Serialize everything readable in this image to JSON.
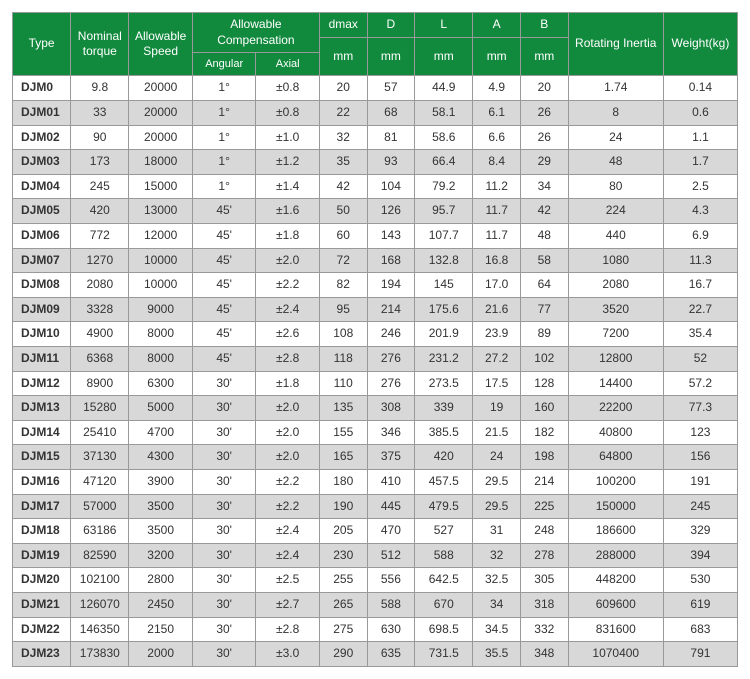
{
  "header": {
    "bg_color": "#128a3e",
    "text_color": "#ffffff",
    "cols": {
      "type": "Type",
      "nominal_torque": "Nominal torque",
      "allowable_speed": "Allowable Speed",
      "allowable_comp": "Allowable Compensation",
      "angular": "Angular",
      "axial": "Axial",
      "dmax": "dmax",
      "dmax_unit": "mm",
      "D": "D",
      "D_unit": "mm",
      "L": "L",
      "L_unit": "mm",
      "A": "A",
      "A_unit": "mm",
      "B": "B",
      "B_unit": "mm",
      "rotating_inertia": "Rotating Inertia",
      "weight": "Weight(kg)"
    }
  },
  "col_widths": {
    "type": 55,
    "torque": 55,
    "speed": 60,
    "angular": 60,
    "axial": 60,
    "dmax": 45,
    "D": 45,
    "L": 55,
    "A": 45,
    "B": 45,
    "inertia": 90,
    "weight": 70
  },
  "zebra": {
    "odd": "#ffffff",
    "even": "#d8d8d8"
  },
  "rows": [
    {
      "type": "DJM0",
      "torque": "9.8",
      "speed": "20000",
      "ang": "1°",
      "ax": "±0.8",
      "dmax": "20",
      "D": "57",
      "L": "44.9",
      "A": "4.9",
      "B": "20",
      "inertia": "1.74",
      "weight": "0.14"
    },
    {
      "type": "DJM01",
      "torque": "33",
      "speed": "20000",
      "ang": "1°",
      "ax": "±0.8",
      "dmax": "22",
      "D": "68",
      "L": "58.1",
      "A": "6.1",
      "B": "26",
      "inertia": "8",
      "weight": "0.6"
    },
    {
      "type": "DJM02",
      "torque": "90",
      "speed": "20000",
      "ang": "1°",
      "ax": "±1.0",
      "dmax": "32",
      "D": "81",
      "L": "58.6",
      "A": "6.6",
      "B": "26",
      "inertia": "24",
      "weight": "1.1"
    },
    {
      "type": "DJM03",
      "torque": "173",
      "speed": "18000",
      "ang": "1°",
      "ax": "±1.2",
      "dmax": "35",
      "D": "93",
      "L": "66.4",
      "A": "8.4",
      "B": "29",
      "inertia": "48",
      "weight": "1.7"
    },
    {
      "type": "DJM04",
      "torque": "245",
      "speed": "15000",
      "ang": "1°",
      "ax": "±1.4",
      "dmax": "42",
      "D": "104",
      "L": "79.2",
      "A": "11.2",
      "B": "34",
      "inertia": "80",
      "weight": "2.5"
    },
    {
      "type": "DJM05",
      "torque": "420",
      "speed": "13000",
      "ang": "45'",
      "ax": "±1.6",
      "dmax": "50",
      "D": "126",
      "L": "95.7",
      "A": "11.7",
      "B": "42",
      "inertia": "224",
      "weight": "4.3"
    },
    {
      "type": "DJM06",
      "torque": "772",
      "speed": "12000",
      "ang": "45'",
      "ax": "±1.8",
      "dmax": "60",
      "D": "143",
      "L": "107.7",
      "A": "11.7",
      "B": "48",
      "inertia": "440",
      "weight": "6.9"
    },
    {
      "type": "DJM07",
      "torque": "1270",
      "speed": "10000",
      "ang": "45'",
      "ax": "±2.0",
      "dmax": "72",
      "D": "168",
      "L": "132.8",
      "A": "16.8",
      "B": "58",
      "inertia": "1080",
      "weight": "11.3"
    },
    {
      "type": "DJM08",
      "torque": "2080",
      "speed": "10000",
      "ang": "45'",
      "ax": "±2.2",
      "dmax": "82",
      "D": "194",
      "L": "145",
      "A": "17.0",
      "B": "64",
      "inertia": "2080",
      "weight": "16.7"
    },
    {
      "type": "DJM09",
      "torque": "3328",
      "speed": "9000",
      "ang": "45'",
      "ax": "±2.4",
      "dmax": "95",
      "D": "214",
      "L": "175.6",
      "A": "21.6",
      "B": "77",
      "inertia": "3520",
      "weight": "22.7"
    },
    {
      "type": "DJM10",
      "torque": "4900",
      "speed": "8000",
      "ang": "45'",
      "ax": "±2.6",
      "dmax": "108",
      "D": "246",
      "L": "201.9",
      "A": "23.9",
      "B": "89",
      "inertia": "7200",
      "weight": "35.4"
    },
    {
      "type": "DJM11",
      "torque": "6368",
      "speed": "8000",
      "ang": "45'",
      "ax": "±2.8",
      "dmax": "118",
      "D": "276",
      "L": "231.2",
      "A": "27.2",
      "B": "102",
      "inertia": "12800",
      "weight": "52"
    },
    {
      "type": "DJM12",
      "torque": "8900",
      "speed": "6300",
      "ang": "30'",
      "ax": "±1.8",
      "dmax": "110",
      "D": "276",
      "L": "273.5",
      "A": "17.5",
      "B": "128",
      "inertia": "14400",
      "weight": "57.2"
    },
    {
      "type": "DJM13",
      "torque": "15280",
      "speed": "5000",
      "ang": "30'",
      "ax": "±2.0",
      "dmax": "135",
      "D": "308",
      "L": "339",
      "A": "19",
      "B": "160",
      "inertia": "22200",
      "weight": "77.3"
    },
    {
      "type": "DJM14",
      "torque": "25410",
      "speed": "4700",
      "ang": "30'",
      "ax": "±2.0",
      "dmax": "155",
      "D": "346",
      "L": "385.5",
      "A": "21.5",
      "B": "182",
      "inertia": "40800",
      "weight": "123"
    },
    {
      "type": "DJM15",
      "torque": "37130",
      "speed": "4300",
      "ang": "30'",
      "ax": "±2.0",
      "dmax": "165",
      "D": "375",
      "L": "420",
      "A": "24",
      "B": "198",
      "inertia": "64800",
      "weight": "156"
    },
    {
      "type": "DJM16",
      "torque": "47120",
      "speed": "3900",
      "ang": "30'",
      "ax": "±2.2",
      "dmax": "180",
      "D": "410",
      "L": "457.5",
      "A": "29.5",
      "B": "214",
      "inertia": "100200",
      "weight": "191"
    },
    {
      "type": "DJM17",
      "torque": "57000",
      "speed": "3500",
      "ang": "30'",
      "ax": "±2.2",
      "dmax": "190",
      "D": "445",
      "L": "479.5",
      "A": "29.5",
      "B": "225",
      "inertia": "150000",
      "weight": "245"
    },
    {
      "type": "DJM18",
      "torque": "63186",
      "speed": "3500",
      "ang": "30'",
      "ax": "±2.4",
      "dmax": "205",
      "D": "470",
      "L": "527",
      "A": "31",
      "B": "248",
      "inertia": "186600",
      "weight": "329"
    },
    {
      "type": "DJM19",
      "torque": "82590",
      "speed": "3200",
      "ang": "30'",
      "ax": "±2.4",
      "dmax": "230",
      "D": "512",
      "L": "588",
      "A": "32",
      "B": "278",
      "inertia": "288000",
      "weight": "394"
    },
    {
      "type": "DJM20",
      "torque": "102100",
      "speed": "2800",
      "ang": "30'",
      "ax": "±2.5",
      "dmax": "255",
      "D": "556",
      "L": "642.5",
      "A": "32.5",
      "B": "305",
      "inertia": "448200",
      "weight": "530"
    },
    {
      "type": "DJM21",
      "torque": "126070",
      "speed": "2450",
      "ang": "30'",
      "ax": "±2.7",
      "dmax": "265",
      "D": "588",
      "L": "670",
      "A": "34",
      "B": "318",
      "inertia": "609600",
      "weight": "619"
    },
    {
      "type": "DJM22",
      "torque": "146350",
      "speed": "2150",
      "ang": "30'",
      "ax": "±2.8",
      "dmax": "275",
      "D": "630",
      "L": "698.5",
      "A": "34.5",
      "B": "332",
      "inertia": "831600",
      "weight": "683"
    },
    {
      "type": "DJM23",
      "torque": "173830",
      "speed": "2000",
      "ang": "30'",
      "ax": "±3.0",
      "dmax": "290",
      "D": "635",
      "L": "731.5",
      "A": "35.5",
      "B": "348",
      "inertia": "1070400",
      "weight": "791"
    }
  ]
}
